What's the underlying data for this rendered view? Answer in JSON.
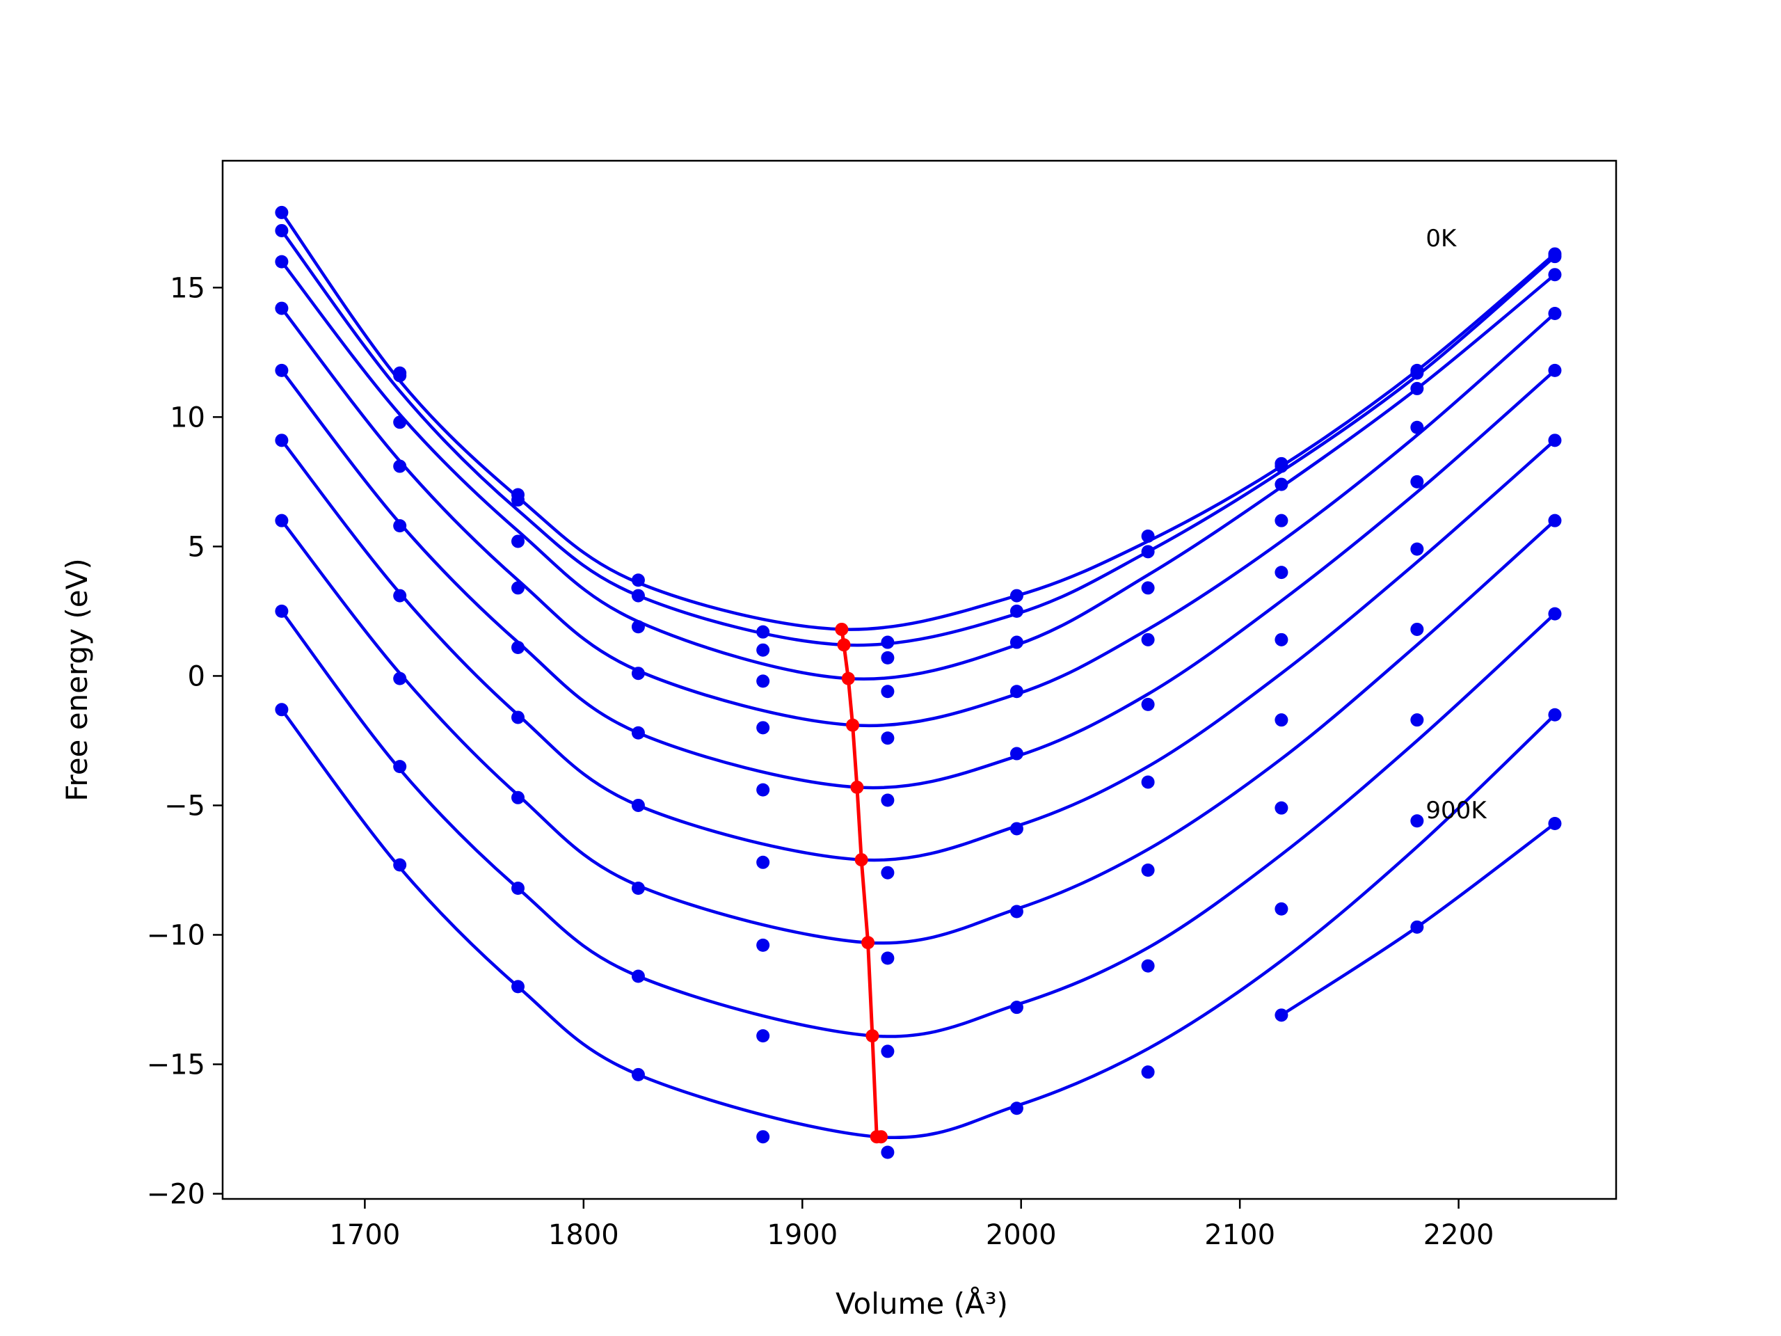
{
  "chart_data": {
    "type": "line",
    "xlabel": "Volume (Å³)",
    "ylabel": "Free energy (eV)",
    "xlim": [
      1635,
      2272
    ],
    "ylim": [
      -20.2,
      19.9
    ],
    "xticks": [
      1700,
      1800,
      1900,
      2000,
      2100,
      2200
    ],
    "yticks": [
      -20,
      -15,
      -10,
      -5,
      0,
      5,
      10,
      15
    ],
    "grid": false,
    "legend": "none",
    "colors": {
      "fit": "#0000ee",
      "points": "#0000ee",
      "minima": "#ff0000"
    },
    "annotations": [
      {
        "text": "0K",
        "x": 2185,
        "y": 16.6
      },
      {
        "text": "900K",
        "x": 2185,
        "y": -5.5
      }
    ],
    "volumes": [
      1662,
      1716,
      1770,
      1825,
      1882,
      1939,
      1998,
      2058,
      2119,
      2181,
      2244
    ],
    "series": [
      {
        "points": [
          17.9,
          11.7,
          7.0,
          3.7,
          1.7,
          1.3,
          3.1,
          5.4,
          8.2,
          11.8,
          16.3
        ],
        "fit": {
          "vmin": 1918,
          "emin": 1.8,
          "left": [
            [
              1716,
              11.4
            ],
            [
              1770,
              6.9
            ],
            [
              1825,
              3.6
            ]
          ],
          "right": [
            [
              1998,
              3.1
            ],
            [
              2058,
              5.2
            ],
            [
              2119,
              8.1
            ],
            [
              2181,
              11.8
            ]
          ]
        }
      },
      {
        "points": [
          17.2,
          11.6,
          6.8,
          3.1,
          1.0,
          0.7,
          2.5,
          4.8,
          8.1,
          11.7,
          16.2
        ],
        "fit": {
          "vmin": 1919,
          "emin": 1.2,
          "left": [
            [
              1716,
              11.0
            ],
            [
              1770,
              6.4
            ],
            [
              1825,
              3.1
            ]
          ],
          "right": [
            [
              1998,
              2.4
            ],
            [
              2058,
              4.8
            ],
            [
              2119,
              7.9
            ],
            [
              2181,
              11.6
            ]
          ]
        }
      },
      {
        "points": [
          16.0,
          9.8,
          5.2,
          1.9,
          -0.2,
          -0.6,
          1.3,
          3.4,
          7.4,
          11.1,
          15.5
        ],
        "fit": {
          "vmin": 1921,
          "emin": -0.1,
          "left": [
            [
              1716,
              10.1
            ],
            [
              1770,
              5.6
            ],
            [
              1825,
              2.1
            ]
          ],
          "right": [
            [
              1998,
              1.2
            ],
            [
              2058,
              3.9
            ],
            [
              2119,
              7.3
            ],
            [
              2181,
              11.1
            ]
          ]
        }
      },
      {
        "points": [
          14.2,
          8.1,
          3.4,
          0.1,
          -2.0,
          -2.4,
          -0.6,
          1.4,
          6.0,
          9.6,
          14.0
        ],
        "fit": {
          "vmin": 1923,
          "emin": -1.9,
          "left": [
            [
              1716,
              8.3
            ],
            [
              1770,
              3.7
            ],
            [
              1825,
              0.2
            ]
          ],
          "right": [
            [
              1998,
              -0.7
            ],
            [
              2058,
              1.8
            ],
            [
              2119,
              5.2
            ],
            [
              2181,
              9.3
            ]
          ]
        }
      },
      {
        "points": [
          11.8,
          5.8,
          1.1,
          -2.2,
          -4.4,
          -4.8,
          -3.0,
          -1.1,
          4.0,
          7.5,
          11.8
        ],
        "fit": {
          "vmin": 1925,
          "emin": -4.3,
          "left": [
            [
              1716,
              5.9
            ],
            [
              1770,
              1.3
            ],
            [
              1825,
              -2.2
            ]
          ],
          "right": [
            [
              1998,
              -3.1
            ],
            [
              2058,
              -0.7
            ],
            [
              2119,
              2.9
            ],
            [
              2181,
              7.1
            ]
          ]
        }
      },
      {
        "points": [
          9.1,
          3.1,
          -1.6,
          -5.0,
          -7.2,
          -7.6,
          -5.9,
          -4.1,
          1.4,
          4.9,
          9.1
        ],
        "fit": {
          "vmin": 1927,
          "emin": -7.1,
          "left": [
            [
              1716,
              3.2
            ],
            [
              1770,
              -1.5
            ],
            [
              1825,
              -5.0
            ]
          ],
          "right": [
            [
              1998,
              -5.8
            ],
            [
              2058,
              -3.5
            ],
            [
              2119,
              0.1
            ],
            [
              2181,
              4.4
            ]
          ]
        }
      },
      {
        "points": [
          6.0,
          -0.1,
          -4.7,
          -8.2,
          -10.4,
          -10.9,
          -9.1,
          -7.5,
          -1.7,
          1.8,
          6.0
        ],
        "fit": {
          "vmin": 1930,
          "emin": -10.3,
          "left": [
            [
              1716,
              0.1
            ],
            [
              1770,
              -4.6
            ],
            [
              1825,
              -8.1
            ]
          ],
          "right": [
            [
              1998,
              -9.0
            ],
            [
              2058,
              -6.7
            ],
            [
              2119,
              -3.2
            ],
            [
              2181,
              1.2
            ]
          ]
        }
      },
      {
        "points": [
          2.5,
          -3.5,
          -8.2,
          -11.6,
          -13.9,
          -14.5,
          -12.8,
          -11.2,
          -5.1,
          -1.7,
          2.4
        ],
        "fit": {
          "vmin": 1932,
          "emin": -13.9,
          "left": [
            [
              1716,
              -3.6
            ],
            [
              1770,
              -8.2
            ],
            [
              1825,
              -11.6
            ]
          ],
          "right": [
            [
              1998,
              -12.7
            ],
            [
              2058,
              -10.5
            ],
            [
              2119,
              -6.9
            ],
            [
              2181,
              -2.5
            ]
          ]
        }
      },
      {
        "points": [
          -1.3,
          -7.3,
          -12.0,
          -15.4,
          -17.8,
          -18.4,
          -16.7,
          -15.3,
          -9.0,
          -5.6,
          -1.5
        ],
        "fit": {
          "vmin": 1934,
          "emin": -17.8,
          "left": [
            [
              1716,
              -7.4
            ],
            [
              1770,
              -12.0
            ],
            [
              1825,
              -15.4
            ]
          ],
          "right": [
            [
              1998,
              -16.6
            ],
            [
              2058,
              -14.4
            ],
            [
              2119,
              -11.0
            ],
            [
              2181,
              -6.6
            ]
          ]
        }
      },
      {
        "points": [
          null,
          null,
          null,
          null,
          null,
          null,
          null,
          null,
          -13.1,
          -9.7,
          -5.7
        ],
        "fit": {
          "vmin": null,
          "emin": null,
          "left": [],
          "right": [
            [
              2119,
              -13.1
            ],
            [
              2181,
              -9.7
            ],
            [
              2244,
              -5.7
            ]
          ]
        }
      }
    ],
    "minima": {
      "x": [
        1918,
        1919,
        1921,
        1923,
        1925,
        1927,
        1930,
        1932,
        1934,
        1936
      ],
      "y": [
        1.8,
        1.2,
        -0.1,
        -1.9,
        -4.3,
        -7.1,
        -10.3,
        -13.9,
        -17.8,
        -17.8
      ]
    }
  }
}
